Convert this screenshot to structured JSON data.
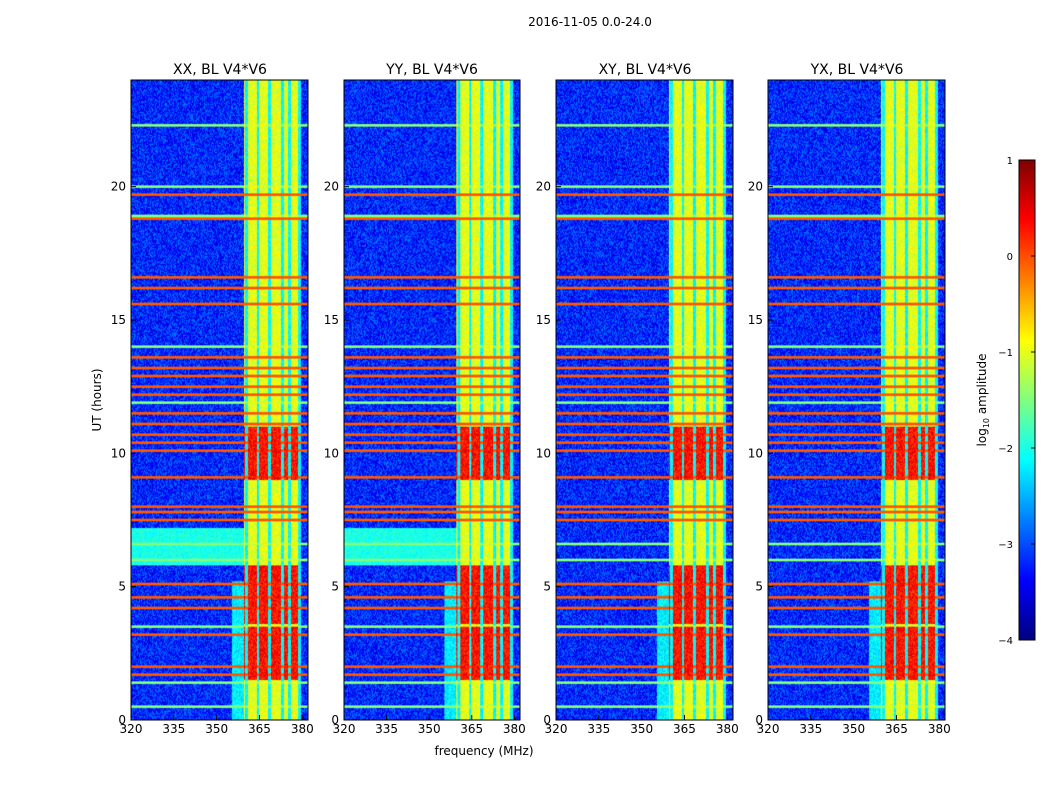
{
  "figure_title": "2016-11-05 0.0-24.0",
  "chart_data": {
    "type": "heatmap",
    "suptitle": "2016-11-05 0.0-24.0",
    "xlabel": "frequency (MHz)",
    "ylabel": "UT (hours)",
    "xlim": [
      320,
      382
    ],
    "ylim": [
      0,
      24
    ],
    "xticks": [
      320,
      335,
      350,
      365,
      380
    ],
    "yticks": [
      0,
      5,
      10,
      15,
      20
    ],
    "panels": [
      {
        "title": "XX, BL V4*V6",
        "pol": "XX"
      },
      {
        "title": "YY, BL V4*V6",
        "pol": "YY"
      },
      {
        "title": "XY, BL V4*V6",
        "pol": "XY"
      },
      {
        "title": "YX, BL V4*V6",
        "pol": "YX"
      }
    ],
    "colorbar": {
      "label": "log10 amplitude",
      "range": [
        -4,
        1
      ],
      "ticks": [
        1,
        0,
        -1,
        -2,
        -3,
        -4
      ],
      "tick_labels": [
        "1",
        "0",
        "−1",
        "−2",
        "−3",
        "−4"
      ],
      "colormap": "jet"
    },
    "features": {
      "rfi_band_mhz": [
        359.5,
        374.0,
        379.5
      ],
      "rfi_band_level": -1.0,
      "band_lines_mhz": [
        360.5,
        364.5,
        368.5,
        373.0,
        375.5,
        379.0
      ],
      "background_level": -3.2,
      "strong_time_lines_hours": [
        1.7,
        2.0,
        3.2,
        4.2,
        4.6,
        5.1,
        7.5,
        7.8,
        8.0,
        9.1,
        10.1,
        10.4,
        10.7,
        11.1,
        11.5,
        12.2,
        12.5,
        12.9,
        13.2,
        13.6,
        15.6,
        16.2,
        16.6,
        18.8,
        19.7
      ],
      "moderate_time_lines_hours": [
        0.5,
        1.4,
        3.5,
        6.0,
        6.6,
        11.9,
        14.0,
        18.9,
        20.0,
        22.3
      ],
      "hot_intervals_hours": [
        [
          1.5,
          3.5
        ],
        [
          3.6,
          5.8
        ],
        [
          9.0,
          11.0
        ]
      ],
      "hot_level": 0.3
    }
  }
}
